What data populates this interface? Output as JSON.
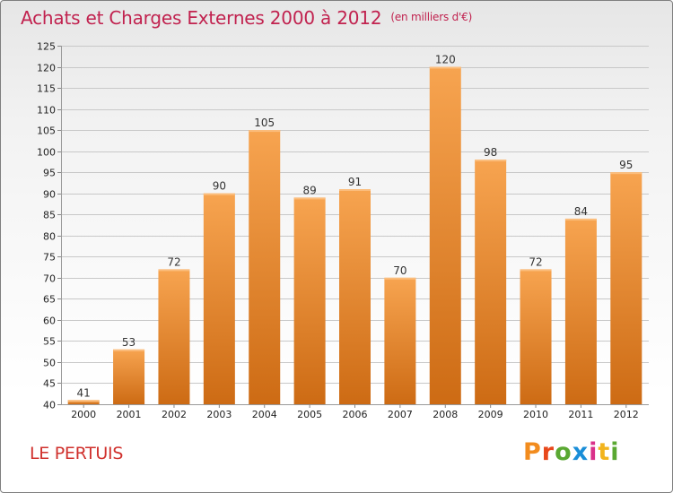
{
  "title": "Achats et Charges Externes 2000 à 2012",
  "unit": "(en milliers d'€)",
  "commune": "LE PERTUIS",
  "logo": {
    "text": "Proxiti",
    "colors": [
      "#f28c1e",
      "#e8481c",
      "#5aa832",
      "#1a8ed8",
      "#d9308a",
      "#f2b41e",
      "#5aa832"
    ]
  },
  "colors": {
    "title": "#c1224f",
    "commune": "#d0312d",
    "bar_top": "#f7a450",
    "bar_bottom": "#cd6b14",
    "grid": "#c8c8c8",
    "axis_text": "#222222"
  },
  "chart_data": {
    "type": "bar",
    "title": "Achats et Charges Externes 2000 à 2012",
    "subtitle": "(en milliers d'€)",
    "xlabel": "",
    "ylabel": "",
    "categories": [
      "2000",
      "2001",
      "2002",
      "2003",
      "2004",
      "2005",
      "2006",
      "2007",
      "2008",
      "2009",
      "2010",
      "2011",
      "2012"
    ],
    "values": [
      41,
      53,
      72,
      90,
      105,
      89,
      91,
      70,
      120,
      98,
      72,
      84,
      95
    ],
    "data_labels": [
      "41",
      "53",
      "72",
      "90",
      "105",
      "89",
      "91",
      "70",
      "120",
      "98",
      "72",
      "84",
      "95"
    ],
    "ylim": [
      40,
      125
    ],
    "yticks": [
      40,
      45,
      50,
      55,
      60,
      65,
      70,
      75,
      80,
      85,
      90,
      95,
      100,
      105,
      110,
      115,
      120,
      125
    ],
    "ytick_labels": [
      "40",
      "45",
      "50",
      "55",
      "60",
      "65",
      "70",
      "75",
      "80",
      "85",
      "90",
      "95",
      "100",
      "105",
      "110",
      "115",
      "120",
      "125"
    ],
    "grid": true,
    "legend": "none"
  }
}
